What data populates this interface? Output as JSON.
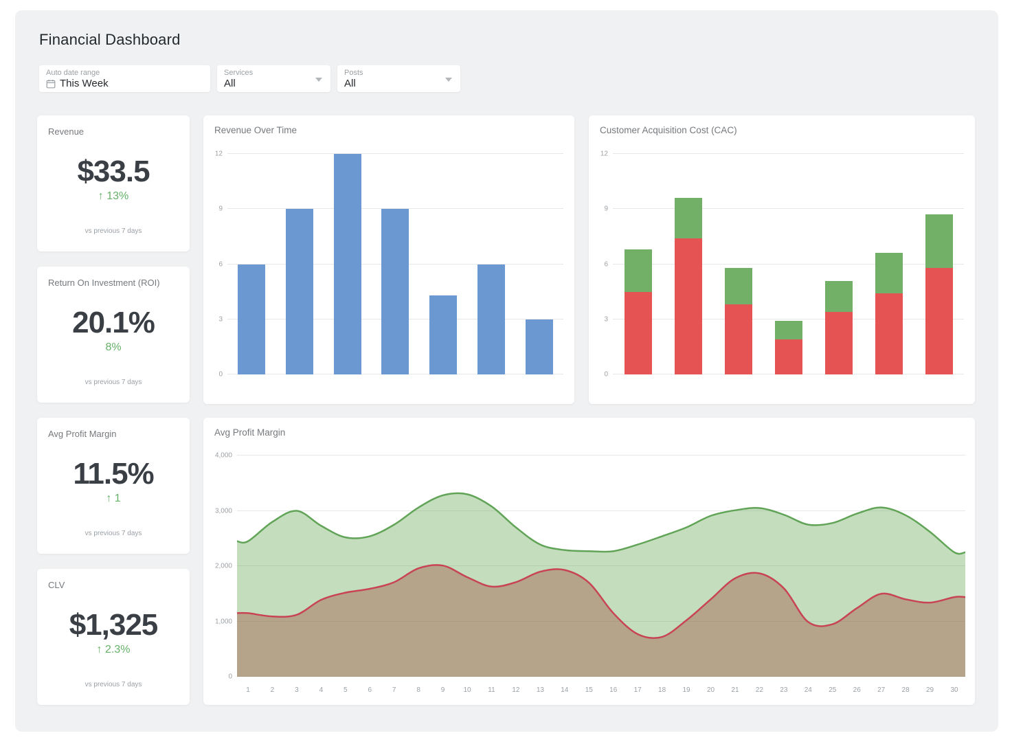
{
  "page": {
    "title": "Financial Dashboard"
  },
  "filters": [
    {
      "label": "Auto date range",
      "value": "This Week",
      "icon": "calendar-icon"
    },
    {
      "label": "Services",
      "value": "All",
      "icon": "chevron-down-icon"
    },
    {
      "label": "Posts",
      "value": "All",
      "icon": "chevron-down-icon"
    }
  ],
  "kpis": [
    {
      "title": "Revenue",
      "value": "$33.5",
      "delta": "↑ 13%",
      "note": "vs previous 7 days"
    },
    {
      "title": "Return On Investment (ROI)",
      "value": "20.1%",
      "delta": "8%",
      "note": "vs previous 7 days"
    },
    {
      "title": "Avg Profit Margin",
      "value": "11.5%",
      "delta": "↑ 1",
      "note": "vs previous 7 days"
    },
    {
      "title": "CLV",
      "value": "$1,325",
      "delta": "↑ 2.3%",
      "note": "vs previous 7 days"
    }
  ],
  "colors": {
    "panel_bg": "#f0f1f2",
    "blue_bar": "#6c98d1",
    "red_bar": "#e55353",
    "green_bar": "#73b067",
    "green_line": "#61a457",
    "green_fill": "rgba(111,173,98,0.42)",
    "red_line": "#c84455",
    "red_fill": "rgba(160,80,60,0.40)",
    "delta_green": "#65b168"
  },
  "chart_data": [
    {
      "type": "bar",
      "title": "Revenue Over Time",
      "values": [
        6,
        9,
        12,
        9,
        4.3,
        6,
        3
      ],
      "ylim": [
        0,
        12
      ],
      "yticks": [
        0,
        3,
        6,
        9,
        12
      ],
      "color": "#6c98d1",
      "grid": true,
      "x_axis_labels": false,
      "legend": false
    },
    {
      "type": "bar",
      "stacked": true,
      "title": "Customer Acquisition Cost (CAC)",
      "series": [
        {
          "name": "red",
          "color": "#e55353",
          "values": [
            4.5,
            7.4,
            3.8,
            1.9,
            3.4,
            4.4,
            5.8
          ]
        },
        {
          "name": "green",
          "color": "#73b067",
          "values": [
            2.3,
            2.2,
            2.0,
            1.0,
            1.7,
            2.2,
            2.9
          ]
        }
      ],
      "ylim": [
        0,
        12
      ],
      "yticks": [
        0,
        3,
        6,
        9,
        12
      ],
      "grid": true,
      "x_axis_labels": false,
      "legend": false
    },
    {
      "type": "area",
      "title": "Avg Profit Margin",
      "x": [
        1,
        2,
        3,
        4,
        5,
        6,
        7,
        8,
        9,
        10,
        11,
        12,
        13,
        14,
        15,
        16,
        17,
        18,
        19,
        20,
        21,
        22,
        23,
        24,
        25,
        26,
        27,
        28,
        29,
        30
      ],
      "ylim": [
        0,
        4000
      ],
      "yticks": [
        0,
        1000,
        2000,
        3000,
        4000
      ],
      "ytick_labels": [
        "0",
        "1,000",
        "2,000",
        "3,000",
        "4,000"
      ],
      "series": [
        {
          "name": "green",
          "color": "#61a457",
          "fill": "rgba(111,173,98,0.42)",
          "values": [
            2450,
            2800,
            3000,
            2730,
            2520,
            2540,
            2750,
            3060,
            3280,
            3300,
            3080,
            2700,
            2390,
            2290,
            2270,
            2270,
            2390,
            2540,
            2700,
            2910,
            3010,
            3050,
            2930,
            2750,
            2780,
            2950,
            3060,
            2920,
            2620,
            2250
          ]
        },
        {
          "name": "red",
          "color": "#c84455",
          "fill": "rgba(160,80,60,0.40)",
          "values": [
            1150,
            1090,
            1120,
            1390,
            1520,
            1590,
            1710,
            1960,
            2010,
            1800,
            1630,
            1710,
            1900,
            1930,
            1700,
            1150,
            770,
            720,
            1020,
            1400,
            1780,
            1870,
            1600,
            990,
            950,
            1240,
            1500,
            1400,
            1340,
            1440
          ]
        }
      ],
      "grid": true,
      "legend": false
    }
  ]
}
